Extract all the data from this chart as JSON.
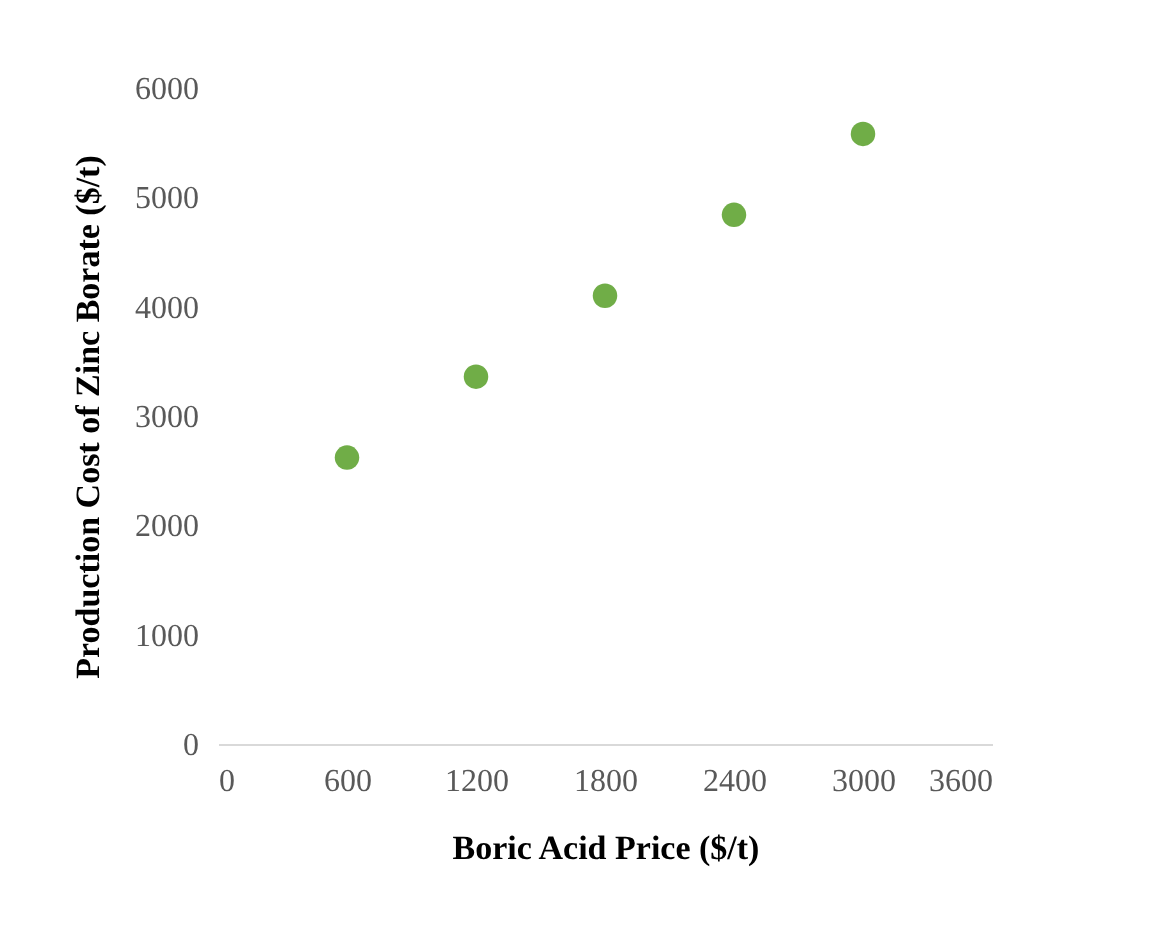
{
  "chart_data": {
    "type": "scatter",
    "xlabel": "Boric Acid Price ($/t)",
    "ylabel": "Production Cost of Zinc Borate ($/t)",
    "x": [
      600,
      1200,
      1800,
      2400,
      3000
    ],
    "series": [
      {
        "color": "#70ad47",
        "values": [
          2620,
          3360,
          4100,
          4840,
          5580
        ]
      }
    ],
    "xlim": [
      0,
      3600
    ],
    "xticks": [
      0,
      600,
      1200,
      1800,
      2400,
      3000,
      3600
    ],
    "ylim": [
      0,
      6000
    ],
    "yticks": [
      0,
      1000,
      2000,
      3000,
      4000,
      5000,
      6000
    ],
    "grid": false,
    "legend": false,
    "marker": "circle"
  }
}
